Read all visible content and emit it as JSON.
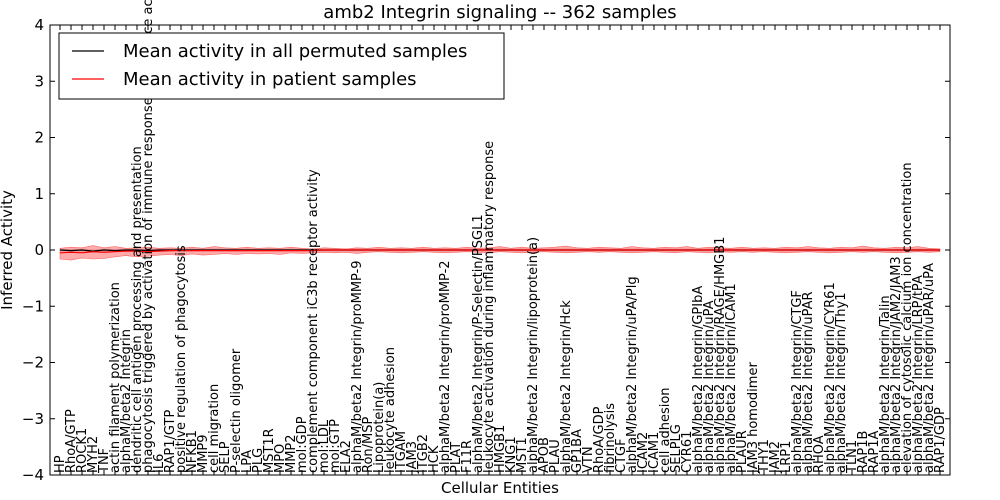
{
  "chart_data": {
    "type": "line",
    "title": "amb2 Integrin signaling -- 362 samples",
    "xlabel": "Cellular Entities",
    "ylabel": "Inferred Activity",
    "ylim": [
      -4,
      4
    ],
    "yticks": [
      -4,
      -3,
      -2,
      -1,
      0,
      1,
      2,
      3,
      4
    ],
    "grid": false,
    "legend_position": "top-left",
    "categories": [
      "HP",
      "RhoA/GTP",
      "ROCK1",
      "MYH2",
      "TNF",
      "actin filament polymerization",
      "alphaM/beta2 Integrin",
      "dendritic cell antigen processing and presentation",
      "phagocytosis triggered by activation of immune response cell surface activating receptor",
      "IL6",
      "RAP1/GTP",
      "positive regulation of phagocytosis",
      "NFKB1",
      "MMP9",
      "cell migration",
      "SELP",
      "P-selectin oligomer",
      "LPA",
      "PLG",
      "MST1R",
      "MPO",
      "MMP2",
      "mol:GDP",
      "complement component iC3b receptor activity",
      "mol:LDL",
      "mol:GTP",
      "ELA2",
      "alphaM/beta2 Integrin/proMMP-9",
      "Ron/MSP",
      "Lipoprotein(a)",
      "leukocyte adhesion",
      "ITGAM",
      "JAM3",
      "ITGB2",
      "HCK",
      "alphaM/beta2 Integrin/proMMP-2",
      "PLAT",
      "F11R",
      "alphaM/beta2 Integrin/P-Selectin/PSGL1",
      "leukocyte activation during inflammatory response",
      "HMGB1",
      "KNG1",
      "MST1",
      "alphaM/beta2 Integrin/lipoprotein(a)",
      "APOB",
      "PLAU",
      "alphaM/beta2 Integrin/Hck",
      "GP1BA",
      "VTN",
      "RhoA/GDP",
      "fibrinolysis",
      "CTGF",
      "alphaM/beta2 Integrin/uPA/Plg",
      "ICAM2",
      "ICAM1",
      "cell adhesion",
      "SELPLG",
      "CYR61",
      "alphaM/beta2 Integrin/GPIbA",
      "alphaM/beta2 Integrin/uPA",
      "alphaM/beta2 Integrin/RAGE/HMGB1",
      "alphaM/beta2 Integrin/ICAM1",
      "PLAUR",
      "JAM3 homodimer",
      "THY1",
      "JAM2",
      "LRP1",
      "alphaM/beta2 Integrin/CTGF",
      "alphaM/beta2 Integrin/uPAR",
      "RHOA",
      "alphaM/beta2 Integrin/CYR61",
      "alphaM/beta2 Integrin/Thy1",
      "TLN1",
      "RAP1B",
      "RAP1A",
      "alphaM/beta2 Integrin/Talin",
      "alphaM/beta2 Integrin/JAM2/JAM3",
      "elevation of cytosolic calcium ion concentration",
      "alphaM/beta2 Integrin/LRP/tPA",
      "alphaM/beta2 Integrin/uPAR/uPA",
      "RAP1/GDP"
    ],
    "series": [
      {
        "name": "Mean activity in all permuted samples",
        "color": "#000000",
        "values": [
          0.0,
          -0.01,
          0.0,
          -0.02,
          0.0,
          -0.01,
          0.0,
          0.0,
          -0.01,
          0.0,
          0.0,
          0.0,
          0.0,
          0.0,
          0.0,
          0.0,
          0.0,
          0.0,
          0.0,
          0.0,
          0.0,
          0.0,
          0.0,
          0.0,
          0.0,
          0.0,
          0.0,
          0.0,
          0.0,
          0.0,
          0.0,
          0.0,
          0.0,
          0.0,
          0.0,
          0.0,
          0.0,
          0.0,
          0.0,
          0.0,
          0.0,
          0.0,
          0.0,
          0.0,
          0.0,
          0.0,
          0.0,
          0.0,
          0.0,
          0.0,
          0.0,
          0.0,
          0.0,
          0.0,
          0.0,
          0.0,
          0.0,
          0.0,
          0.0,
          0.0,
          0.0,
          0.0,
          0.0,
          0.0,
          0.0,
          0.0,
          0.0,
          0.0,
          0.0,
          0.0,
          0.0,
          0.0,
          0.0,
          0.0,
          0.0,
          0.0,
          0.0,
          0.0,
          0.0,
          0.0,
          0.0
        ]
      },
      {
        "name": "Mean activity in patient samples",
        "color": "#ff0000",
        "values": [
          -0.05,
          -0.04,
          -0.05,
          -0.03,
          -0.04,
          -0.03,
          -0.02,
          -0.02,
          -0.03,
          -0.02,
          -0.01,
          -0.01,
          -0.01,
          -0.01,
          -0.01,
          -0.01,
          -0.01,
          -0.01,
          -0.01,
          -0.01,
          -0.01,
          -0.01,
          -0.01,
          -0.01,
          0.0,
          0.0,
          0.0,
          0.0,
          0.0,
          0.0,
          0.0,
          0.0,
          0.0,
          0.0,
          0.0,
          0.0,
          0.0,
          0.0,
          0.0,
          0.0,
          0.0,
          0.0,
          0.0,
          0.0,
          0.0,
          0.0,
          0.0,
          0.0,
          0.0,
          0.0,
          0.0,
          0.0,
          0.0,
          0.0,
          0.0,
          0.0,
          0.0,
          0.0,
          0.0,
          0.0,
          0.0,
          0.0,
          0.0,
          0.0,
          0.0,
          0.0,
          0.0,
          0.0,
          0.0,
          0.0,
          0.0,
          0.0,
          0.0,
          0.0,
          0.0,
          0.0,
          0.0,
          0.0,
          0.0,
          0.0,
          0.0
        ]
      }
    ],
    "bands": [
      {
        "name": "permuted spread",
        "color": "#bbbbbb",
        "lower": [
          -0.01,
          -0.03,
          -0.02,
          -0.04,
          -0.02,
          -0.03,
          -0.02,
          -0.02,
          -0.03,
          -0.02,
          -0.02,
          -0.02,
          -0.02,
          -0.02,
          -0.02,
          -0.02,
          -0.02,
          -0.02,
          -0.02,
          -0.02,
          -0.02,
          -0.02,
          -0.02,
          -0.02,
          -0.02,
          -0.02,
          -0.02,
          -0.02,
          -0.02,
          -0.02,
          -0.02,
          -0.02,
          -0.02,
          -0.02,
          -0.02,
          -0.02,
          -0.02,
          -0.02,
          -0.02,
          -0.02,
          -0.02,
          -0.02,
          -0.02,
          -0.02,
          -0.02,
          -0.02,
          -0.02,
          -0.02,
          -0.02,
          -0.02,
          -0.02,
          -0.02,
          -0.02,
          -0.02,
          -0.02,
          -0.02,
          -0.02,
          -0.02,
          -0.02,
          -0.02,
          -0.02,
          -0.02,
          -0.02,
          -0.02,
          -0.02,
          -0.02,
          -0.02,
          -0.02,
          -0.02,
          -0.02,
          -0.02,
          -0.02,
          -0.02,
          -0.02,
          -0.02,
          -0.02,
          -0.02,
          -0.02,
          -0.02,
          -0.02,
          -0.02
        ],
        "upper": [
          0.01,
          0.01,
          0.02,
          0.0,
          0.02,
          0.01,
          0.02,
          0.02,
          0.01,
          0.02,
          0.02,
          0.02,
          0.02,
          0.02,
          0.02,
          0.02,
          0.02,
          0.02,
          0.02,
          0.02,
          0.02,
          0.02,
          0.02,
          0.02,
          0.02,
          0.02,
          0.02,
          0.02,
          0.02,
          0.02,
          0.02,
          0.02,
          0.02,
          0.02,
          0.02,
          0.02,
          0.02,
          0.02,
          0.02,
          0.02,
          0.02,
          0.02,
          0.02,
          0.02,
          0.02,
          0.02,
          0.02,
          0.02,
          0.02,
          0.02,
          0.02,
          0.02,
          0.02,
          0.02,
          0.02,
          0.02,
          0.02,
          0.02,
          0.02,
          0.02,
          0.02,
          0.02,
          0.02,
          0.02,
          0.02,
          0.02,
          0.02,
          0.02,
          0.02,
          0.02,
          0.02,
          0.02,
          0.02,
          0.02,
          0.02,
          0.02,
          0.02,
          0.02,
          0.02,
          0.02,
          0.02
        ]
      },
      {
        "name": "patient spread",
        "color": "#ff6666",
        "lower": [
          -0.16,
          -0.18,
          -0.14,
          -0.16,
          -0.15,
          -0.12,
          -0.1,
          -0.12,
          -0.11,
          -0.09,
          -0.08,
          -0.1,
          -0.07,
          -0.09,
          -0.08,
          -0.06,
          -0.08,
          -0.06,
          -0.07,
          -0.06,
          -0.08,
          -0.05,
          -0.06,
          -0.05,
          -0.04,
          -0.05,
          -0.04,
          -0.06,
          -0.04,
          -0.03,
          -0.04,
          -0.05,
          -0.04,
          -0.03,
          -0.04,
          -0.05,
          -0.04,
          -0.03,
          -0.04,
          -0.05,
          -0.03,
          -0.04,
          -0.05,
          -0.04,
          -0.03,
          -0.04,
          -0.05,
          -0.04,
          -0.03,
          -0.04,
          -0.03,
          -0.04,
          -0.05,
          -0.04,
          -0.03,
          -0.04,
          -0.05,
          -0.03,
          -0.04,
          -0.05,
          -0.03,
          -0.04,
          -0.03,
          -0.04,
          -0.03,
          -0.04,
          -0.05,
          -0.04,
          -0.03,
          -0.04,
          -0.05,
          -0.04,
          -0.03,
          -0.04,
          -0.03,
          -0.04,
          -0.05,
          -0.04,
          -0.03,
          -0.04,
          -0.03
        ],
        "upper": [
          0.03,
          0.05,
          0.04,
          0.08,
          0.04,
          0.06,
          0.03,
          0.04,
          0.05,
          0.03,
          0.04,
          0.03,
          0.05,
          0.03,
          0.06,
          0.04,
          0.03,
          0.05,
          0.03,
          0.04,
          0.03,
          0.05,
          0.03,
          0.02,
          0.04,
          0.03,
          0.02,
          0.04,
          0.03,
          0.05,
          0.03,
          0.04,
          0.03,
          0.05,
          0.03,
          0.04,
          0.03,
          0.05,
          0.03,
          0.04,
          0.06,
          0.03,
          0.05,
          0.03,
          0.04,
          0.05,
          0.07,
          0.04,
          0.03,
          0.05,
          0.04,
          0.03,
          0.06,
          0.04,
          0.03,
          0.05,
          0.04,
          0.06,
          0.03,
          0.05,
          0.04,
          0.03,
          0.05,
          0.03,
          0.04,
          0.03,
          0.05,
          0.04,
          0.06,
          0.04,
          0.03,
          0.05,
          0.04,
          0.07,
          0.04,
          0.03,
          0.05,
          0.04,
          0.06,
          0.03,
          0.02
        ]
      }
    ]
  }
}
